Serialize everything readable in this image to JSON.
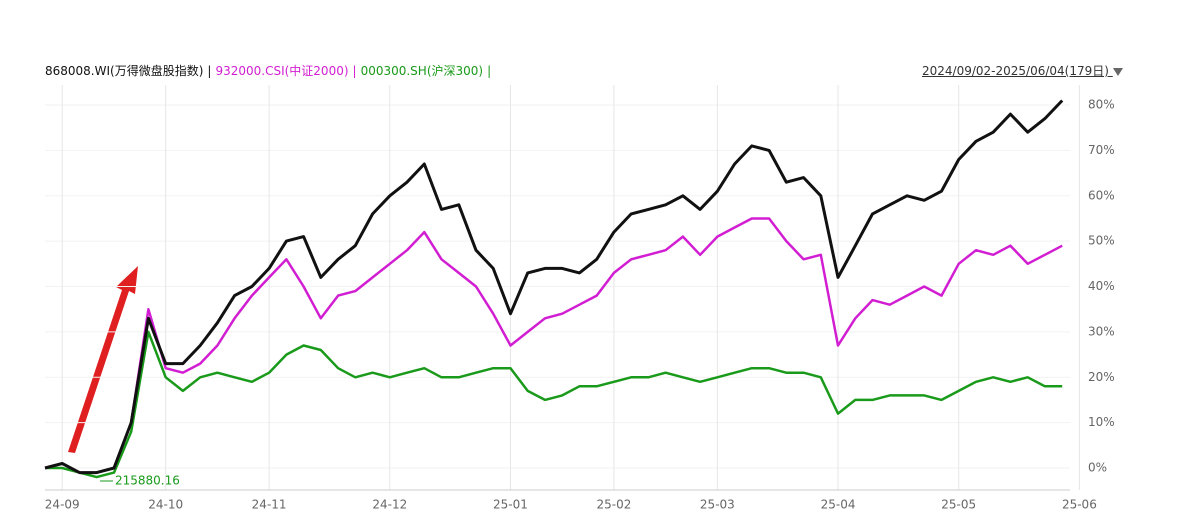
{
  "chart_data": {
    "type": "line",
    "legend_separator": "|",
    "date_range": "2024/09/02-2025/06/04(179日)",
    "annotation": "215880.16",
    "categories": [
      null,
      "24-09",
      null,
      null,
      null,
      null,
      null,
      "24-10",
      null,
      null,
      null,
      null,
      null,
      "24-11",
      null,
      null,
      null,
      null,
      null,
      null,
      "24-12",
      null,
      null,
      null,
      null,
      null,
      null,
      "25-01",
      null,
      null,
      null,
      null,
      null,
      "25-02",
      null,
      null,
      null,
      null,
      null,
      "25-03",
      null,
      null,
      null,
      null,
      null,
      null,
      "25-04",
      null,
      null,
      null,
      null,
      null,
      null,
      "25-05",
      null,
      null,
      null,
      null,
      null,
      null,
      "25-06"
    ],
    "series": [
      {
        "name": "868008.WI(万得微盘股指数)",
        "color": "#111111",
        "values": [
          0,
          1,
          -1,
          -1,
          0,
          10,
          33,
          23,
          23,
          27,
          32,
          38,
          40,
          44,
          50,
          51,
          42,
          46,
          49,
          56,
          60,
          63,
          67,
          57,
          58,
          48,
          44,
          34,
          43,
          44,
          44,
          43,
          46,
          52,
          56,
          57,
          58,
          60,
          57,
          61,
          67,
          71,
          70,
          63,
          64,
          60,
          42,
          49,
          56,
          58,
          60,
          59,
          61,
          68,
          72,
          74,
          78,
          74,
          77,
          81,
          null
        ]
      },
      {
        "name": "932000.CSI(中证2000)",
        "color": "#d21ed2",
        "values": [
          0,
          1,
          -1,
          -1,
          0,
          10,
          35,
          22,
          21,
          23,
          27,
          33,
          38,
          42,
          46,
          40,
          33,
          38,
          39,
          42,
          45,
          48,
          52,
          46,
          43,
          40,
          34,
          27,
          30,
          33,
          34,
          36,
          38,
          43,
          46,
          47,
          48,
          51,
          47,
          51,
          53,
          55,
          55,
          50,
          46,
          47,
          27,
          33,
          37,
          36,
          38,
          40,
          38,
          45,
          48,
          47,
          49,
          45,
          47,
          49,
          null
        ]
      },
      {
        "name": "000300.SH(沪深300)",
        "color": "#1a9a1a",
        "values": [
          0,
          0,
          -1,
          -2,
          -1,
          8,
          30,
          20,
          17,
          20,
          21,
          20,
          19,
          21,
          25,
          27,
          26,
          22,
          20,
          21,
          20,
          21,
          22,
          20,
          20,
          21,
          22,
          22,
          17,
          15,
          16,
          18,
          18,
          19,
          20,
          20,
          21,
          20,
          19,
          20,
          21,
          22,
          22,
          21,
          21,
          20,
          12,
          15,
          15,
          16,
          16,
          16,
          15,
          17,
          19,
          20,
          19,
          20,
          18,
          18,
          null
        ]
      }
    ],
    "ylim": [
      -5,
      83
    ],
    "yticks": [
      {
        "value": 0,
        "label": "0%"
      },
      {
        "value": 10,
        "label": "10%"
      },
      {
        "value": 20,
        "label": "20%"
      },
      {
        "value": 30,
        "label": "30%"
      },
      {
        "value": 40,
        "label": "40%"
      },
      {
        "value": 50,
        "label": "50%"
      },
      {
        "value": 60,
        "label": "60%"
      },
      {
        "value": 70,
        "label": "70%"
      },
      {
        "value": 80,
        "label": "80%"
      }
    ],
    "grid": true
  }
}
